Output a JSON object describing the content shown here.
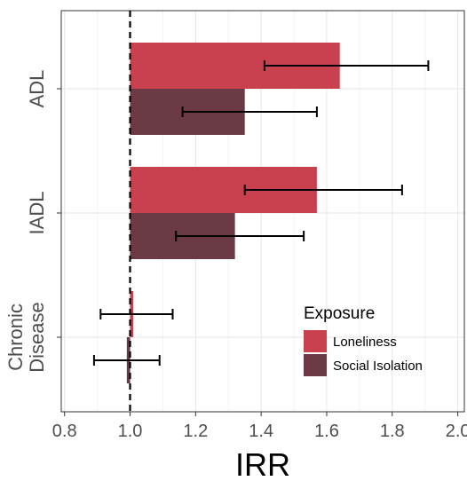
{
  "chart_data": {
    "type": "bar",
    "orientation": "horizontal",
    "xlabel": "IRR",
    "ylabel": "",
    "xlim": [
      0.79,
      2.02
    ],
    "x_ticks": [
      "0.8",
      "1.0",
      "1.2",
      "1.4",
      "1.6",
      "1.8",
      "2.0"
    ],
    "categories": [
      "ADL",
      "IADL",
      "Chronic\nDisease"
    ],
    "reference_line": 1.0,
    "grid": true,
    "legend_title": "Exposure",
    "legend_position": "bottom-right",
    "series": [
      {
        "name": "Loneliness",
        "color": "#c9404f",
        "values": [
          1.64,
          1.57,
          1.01
        ],
        "ci_low": [
          1.41,
          1.35,
          0.91
        ],
        "ci_high": [
          1.91,
          1.83,
          1.13
        ]
      },
      {
        "name": "Social Isolation",
        "color": "#6b3a45",
        "values": [
          1.35,
          1.32,
          0.99
        ],
        "ci_low": [
          1.16,
          1.14,
          0.89
        ],
        "ci_high": [
          1.57,
          1.53,
          1.09
        ]
      }
    ]
  }
}
